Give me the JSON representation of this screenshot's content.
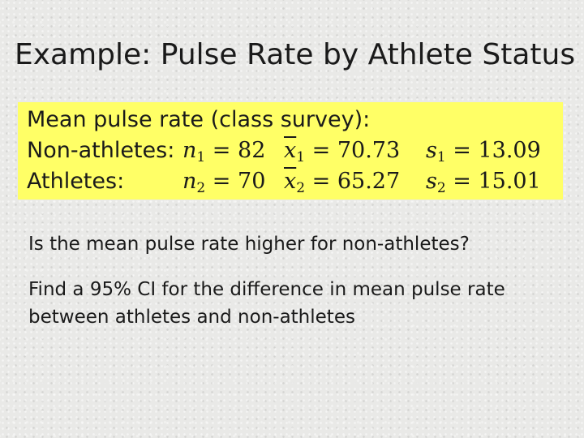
{
  "slide": {
    "title": "Example: Pulse Rate by Athlete Status"
  },
  "summary_box": {
    "heading": "Mean pulse rate (class survey):",
    "rows": [
      {
        "label": "Non-athletes:",
        "n_symbol": "n",
        "subscript": "1",
        "n_value": "82",
        "xbar_symbol": "x",
        "mean_value": "70.73",
        "s_symbol": "s",
        "sd_value": "13.09"
      },
      {
        "label": "Athletes:",
        "n_symbol": "n",
        "subscript": "2",
        "n_value": "70",
        "xbar_symbol": "x",
        "mean_value": "65.27",
        "s_symbol": "s",
        "sd_value": "15.01"
      }
    ],
    "background_color": "#ffff66"
  },
  "questions": {
    "q1": "Is the mean pulse rate higher for non-athletes?",
    "q2": "Find a 95% CI for the difference in mean pulse rate between athletes and non-athletes"
  }
}
